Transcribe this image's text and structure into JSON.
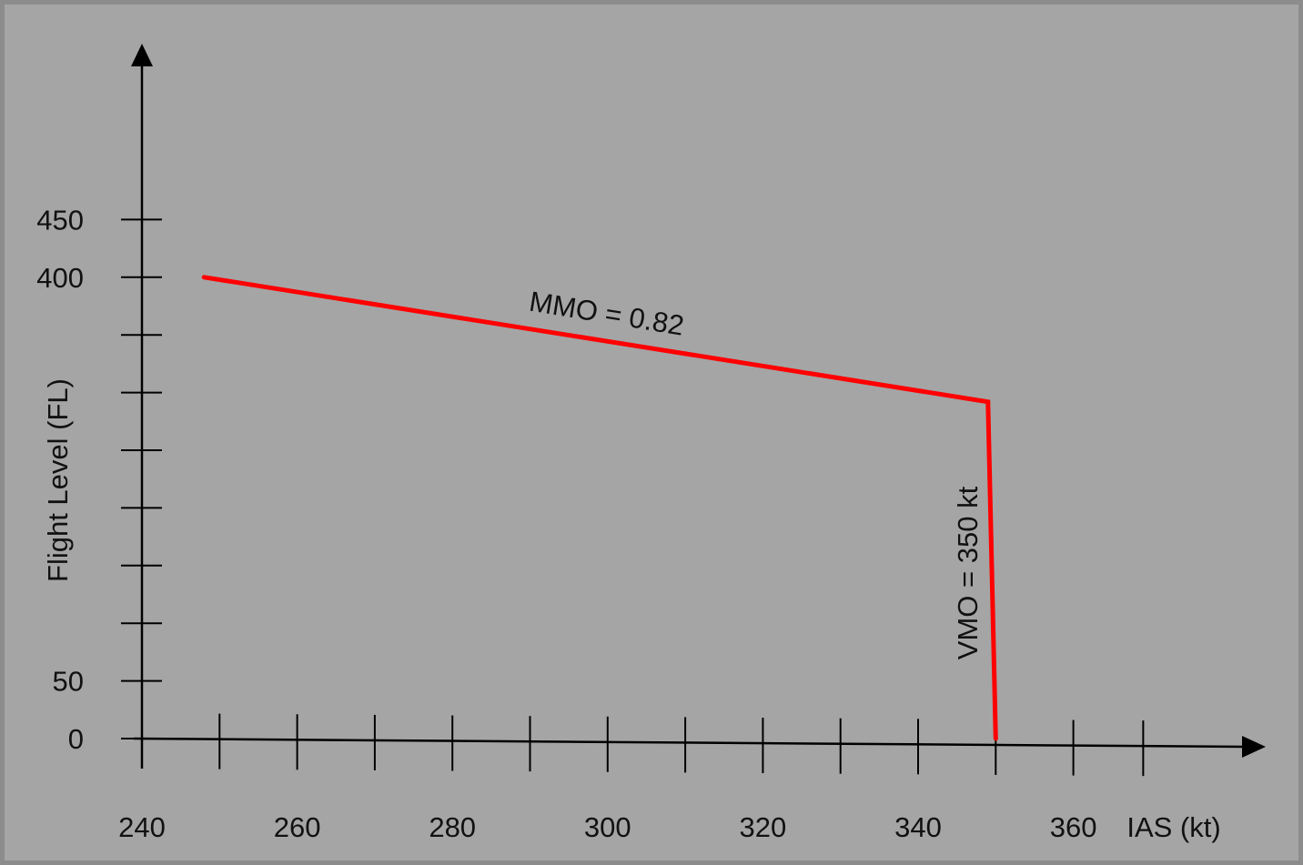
{
  "chart_data": {
    "type": "line",
    "xlabel": "IAS (kt)",
    "ylabel": "Flight Level (FL)",
    "x_ticks": [
      240,
      250,
      260,
      270,
      280,
      290,
      300,
      310,
      320,
      330,
      340,
      350,
      360,
      369
    ],
    "x_tick_labels": [
      {
        "value": 240,
        "label": "240"
      },
      {
        "value": 260,
        "label": "260"
      },
      {
        "value": 280,
        "label": "280"
      },
      {
        "value": 300,
        "label": "300"
      },
      {
        "value": 320,
        "label": "320"
      },
      {
        "value": 340,
        "label": "340"
      },
      {
        "value": 360,
        "label": "360"
      }
    ],
    "y_ticks": [
      0,
      50,
      100,
      150,
      200,
      250,
      300,
      350,
      400,
      450
    ],
    "y_tick_labels": [
      {
        "value": 0,
        "label": "0"
      },
      {
        "value": 50,
        "label": "50"
      },
      {
        "value": 400,
        "label": "400"
      },
      {
        "value": 450,
        "label": "450"
      }
    ],
    "series": [
      {
        "x": [
          248,
          349,
          350
        ],
        "y": [
          400,
          292,
          0
        ],
        "color": "#ff0000"
      }
    ],
    "annotations": [
      {
        "text": "MMO = 0.82",
        "x": 300,
        "y": 360
      },
      {
        "text": "VMO = 350 kt",
        "x": 347,
        "y": 145
      }
    ],
    "grid": false
  },
  "colors": {
    "background": "#a5a5a5",
    "frame": "#8c8c8c",
    "axis": "#000000",
    "line": "#ff0000"
  }
}
